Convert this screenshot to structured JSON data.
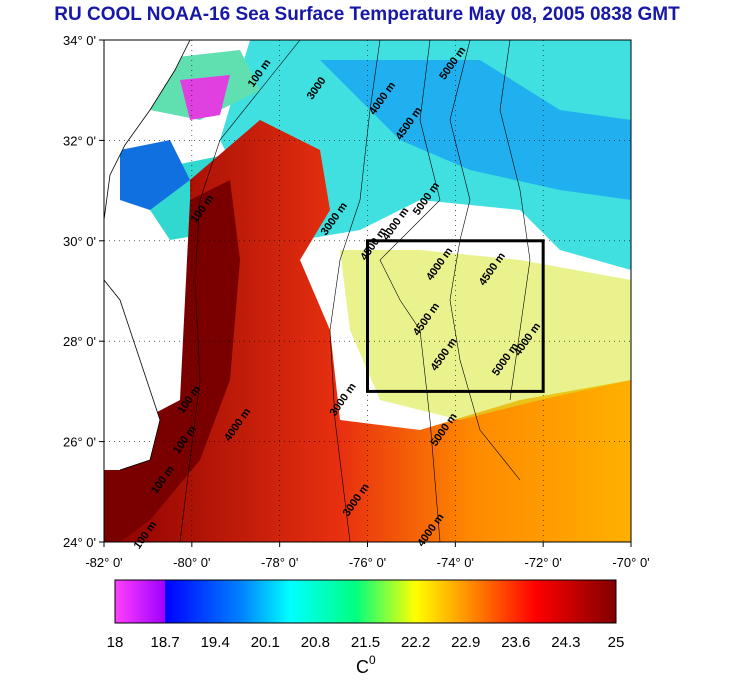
{
  "title": "RU COOL  NOAA-16 Sea Surface Temperature May 08, 2005 0838 GMT",
  "axes": {
    "lat_labels": [
      "34° 0'",
      "32° 0'",
      "30° 0'",
      "28° 0'",
      "26° 0'",
      "24° 0'"
    ],
    "lat_values": [
      34,
      32,
      30,
      28,
      26,
      24
    ],
    "lon_labels": [
      "-82° 0'",
      "-80° 0'",
      "-78° 0'",
      "-76° 0'",
      "-74° 0'",
      "-72° 0'",
      "-70° 0'"
    ],
    "lon_values": [
      -82,
      -80,
      -78,
      -76,
      -74,
      -72,
      -70
    ],
    "lat_range": [
      24,
      34
    ],
    "lon_range": [
      -82,
      -70
    ],
    "grid": "dotted"
  },
  "study_box": {
    "lon": [
      -76,
      -72
    ],
    "lat": [
      27,
      30
    ]
  },
  "contour_labels": [
    {
      "text": "100 m",
      "lon": -78.4,
      "lat": 33.3
    },
    {
      "text": "3000",
      "lon": -77.1,
      "lat": 33.0
    },
    {
      "text": "4000 m",
      "lon": -75.6,
      "lat": 32.8
    },
    {
      "text": "4500 m",
      "lon": -75.0,
      "lat": 32.3
    },
    {
      "text": "5000 m",
      "lon": -74.0,
      "lat": 33.5
    },
    {
      "text": "100 m",
      "lon": -79.7,
      "lat": 30.6
    },
    {
      "text": "3000 m",
      "lon": -76.7,
      "lat": 30.4
    },
    {
      "text": "5000 m",
      "lon": -74.6,
      "lat": 30.8
    },
    {
      "text": "4000 m",
      "lon": -75.3,
      "lat": 30.3
    },
    {
      "text": "4500 m",
      "lon": -75.8,
      "lat": 29.9
    },
    {
      "text": "4000 m",
      "lon": -74.3,
      "lat": 29.5
    },
    {
      "text": "4500 m",
      "lon": -73.1,
      "lat": 29.4
    },
    {
      "text": "4500 m",
      "lon": -74.6,
      "lat": 28.4
    },
    {
      "text": "4000 m",
      "lon": -72.3,
      "lat": 28.0
    },
    {
      "text": "4500 m",
      "lon": -74.2,
      "lat": 27.7
    },
    {
      "text": "5000 m",
      "lon": -72.8,
      "lat": 27.6
    },
    {
      "text": "100 m",
      "lon": -80.0,
      "lat": 26.8
    },
    {
      "text": "3000 m",
      "lon": -76.5,
      "lat": 26.8
    },
    {
      "text": "5000 m",
      "lon": -74.2,
      "lat": 26.2
    },
    {
      "text": "4000 m",
      "lon": -78.9,
      "lat": 26.3
    },
    {
      "text": "100 m",
      "lon": -80.1,
      "lat": 26.0
    },
    {
      "text": "100 m",
      "lon": -80.6,
      "lat": 25.2
    },
    {
      "text": "3000 m",
      "lon": -76.2,
      "lat": 24.8
    },
    {
      "text": "4000 m",
      "lon": -74.5,
      "lat": 24.2
    },
    {
      "text": "100 m",
      "lon": -81.0,
      "lat": 24.1
    }
  ],
  "colorbar": {
    "labels": [
      "18",
      "18.7",
      "19.4",
      "20.1",
      "20.8",
      "21.5",
      "22.2",
      "22.9",
      "23.6",
      "24.3",
      "25"
    ],
    "min": 18,
    "max": 25,
    "unit": "C",
    "unit_superscript": "0",
    "colors": [
      "#ff00ff",
      "#0000ff",
      "#00ffff",
      "#00ff80",
      "#ffff00",
      "#ff8000",
      "#ff0000",
      "#800000"
    ]
  }
}
